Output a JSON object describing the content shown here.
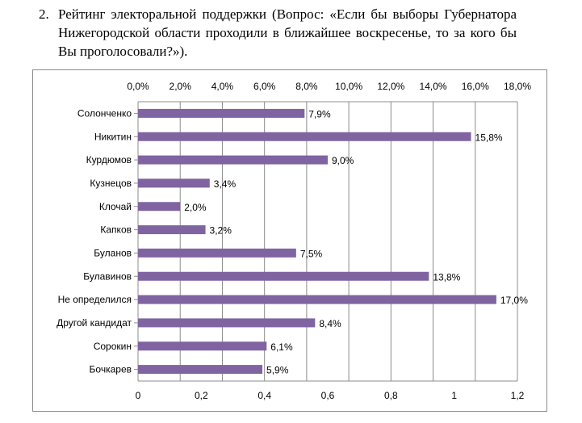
{
  "question": {
    "number": "2.",
    "text": "Рейтинг электоральной поддержки (Вопрос: «Если бы выборы Губернатора Нижегородской области проходили в ближайшее воскресенье, то за кого бы Вы проголосовали?»)."
  },
  "chart_data": {
    "type": "bar",
    "orientation": "horizontal",
    "bar_color": "#8064A2",
    "grid": true,
    "categories": [
      "Солонченко",
      "Никитин",
      "Курдюмов",
      "Кузнецов",
      "Клочай",
      "Капков",
      "Буланов",
      "Булавинов",
      "Не определился",
      "Другой кандидат",
      "Сорокин",
      "Бочкарев"
    ],
    "values": [
      7.9,
      15.8,
      9.0,
      3.4,
      2.0,
      3.2,
      7.5,
      13.8,
      17.0,
      8.4,
      6.1,
      5.9
    ],
    "data_labels": [
      "7,9%",
      "15,8%",
      "9,0%",
      "3,4%",
      "2,0%",
      "3,2%",
      "7,5%",
      "13,8%",
      "17,0%",
      "8,4%",
      "6,1%",
      "5,9%"
    ],
    "top_axis": {
      "min": 0,
      "max": 18,
      "ticks": [
        "0,0%",
        "2,0%",
        "4,0%",
        "6,0%",
        "8,0%",
        "10,0%",
        "12,0%",
        "14,0%",
        "16,0%",
        "18,0%"
      ]
    },
    "bottom_axis": {
      "min": 0,
      "max": 1.2,
      "ticks": [
        "0",
        "0,2",
        "0,4",
        "0,6",
        "0,8",
        "1",
        "1,2"
      ]
    }
  }
}
